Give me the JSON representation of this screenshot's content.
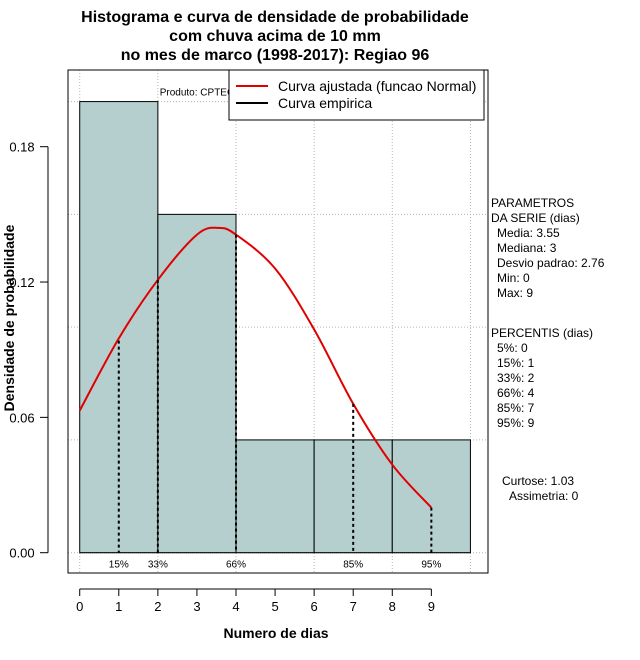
{
  "chart_data": {
    "type": "histogram",
    "title_lines": [
      "Histograma e curva de densidade de probabilidade",
      "com chuva acima de 10 mm",
      "no mes de marco (1998-2017): Regiao 96"
    ],
    "xlabel": "Numero de dias",
    "ylabel": "Densidade de probabilidade",
    "xlim": [
      -0.3,
      10.45
    ],
    "ylim": [
      -0.009,
      0.214
    ],
    "x_ticks": [
      0,
      1,
      2,
      3,
      4,
      5,
      6,
      7,
      8,
      9
    ],
    "x_tick_labels": [
      "0",
      "1",
      "2",
      "3",
      "4",
      "5",
      "6",
      "7",
      "8",
      "9"
    ],
    "y_ticks": [
      0.0,
      0.06,
      0.12,
      0.18
    ],
    "y_tick_labels": [
      "0.00",
      "0.06",
      "0.12",
      "0.18"
    ],
    "x_grid": [
      0,
      2,
      4,
      6,
      8,
      10
    ],
    "y_grid": [
      0.0,
      0.05,
      0.1,
      0.15,
      0.2
    ],
    "bars": [
      {
        "x0": 0,
        "x1": 2,
        "density": 0.2
      },
      {
        "x0": 2,
        "x1": 4,
        "density": 0.15
      },
      {
        "x0": 4,
        "x1": 6,
        "density": 0.05
      },
      {
        "x0": 6,
        "x1": 8,
        "density": 0.05
      },
      {
        "x0": 8,
        "x1": 10,
        "density": 0.05
      }
    ],
    "curve": {
      "name": "Curva ajustada (funcao Normal)",
      "color": "#e00000",
      "x": [
        0,
        1,
        2,
        3,
        3.55,
        4,
        5,
        6,
        7,
        8,
        9
      ],
      "y": [
        0.063,
        0.095,
        0.121,
        0.141,
        0.144,
        0.141,
        0.126,
        0.099,
        0.066,
        0.039,
        0.02
      ]
    },
    "percentile_markers": [
      {
        "label": "15%",
        "x": 1,
        "y": 0.094
      },
      {
        "label": "33%",
        "x": 2,
        "y": 0.121
      },
      {
        "label": "66%",
        "x": 4,
        "y": 0.141
      },
      {
        "label": "85%",
        "x": 7,
        "y": 0.066
      },
      {
        "label": "95%",
        "x": 9,
        "y": 0.02
      }
    ],
    "legend": {
      "position": "top-right",
      "entries": [
        {
          "label": "Curva ajustada (funcao Normal)",
          "color": "#e00000"
        },
        {
          "label": "Curva empirica",
          "color": "#000000"
        }
      ]
    },
    "product_label": "Produto: CPTEC/INPE",
    "colors": {
      "bar_fill": "#b5cfcf",
      "grid": "#b4b4b4",
      "curve": "#e00000",
      "axis": "#000000"
    },
    "side_panel": {
      "params_lines": [
        "PARAMETROS",
        "DA SERIE (dias)",
        "Media: 3.55",
        "Mediana: 3",
        "Desvio padrao: 2.76",
        "Min: 0",
        "Max: 9"
      ],
      "percentis_lines": [
        "PERCENTIS (dias)",
        "5%: 0",
        "15%: 1",
        "33%: 2",
        "66%: 4",
        "85%: 7",
        "95%: 9"
      ],
      "shape_lines": [
        "Curtose: 1.03",
        "Assimetria: 0"
      ]
    }
  }
}
